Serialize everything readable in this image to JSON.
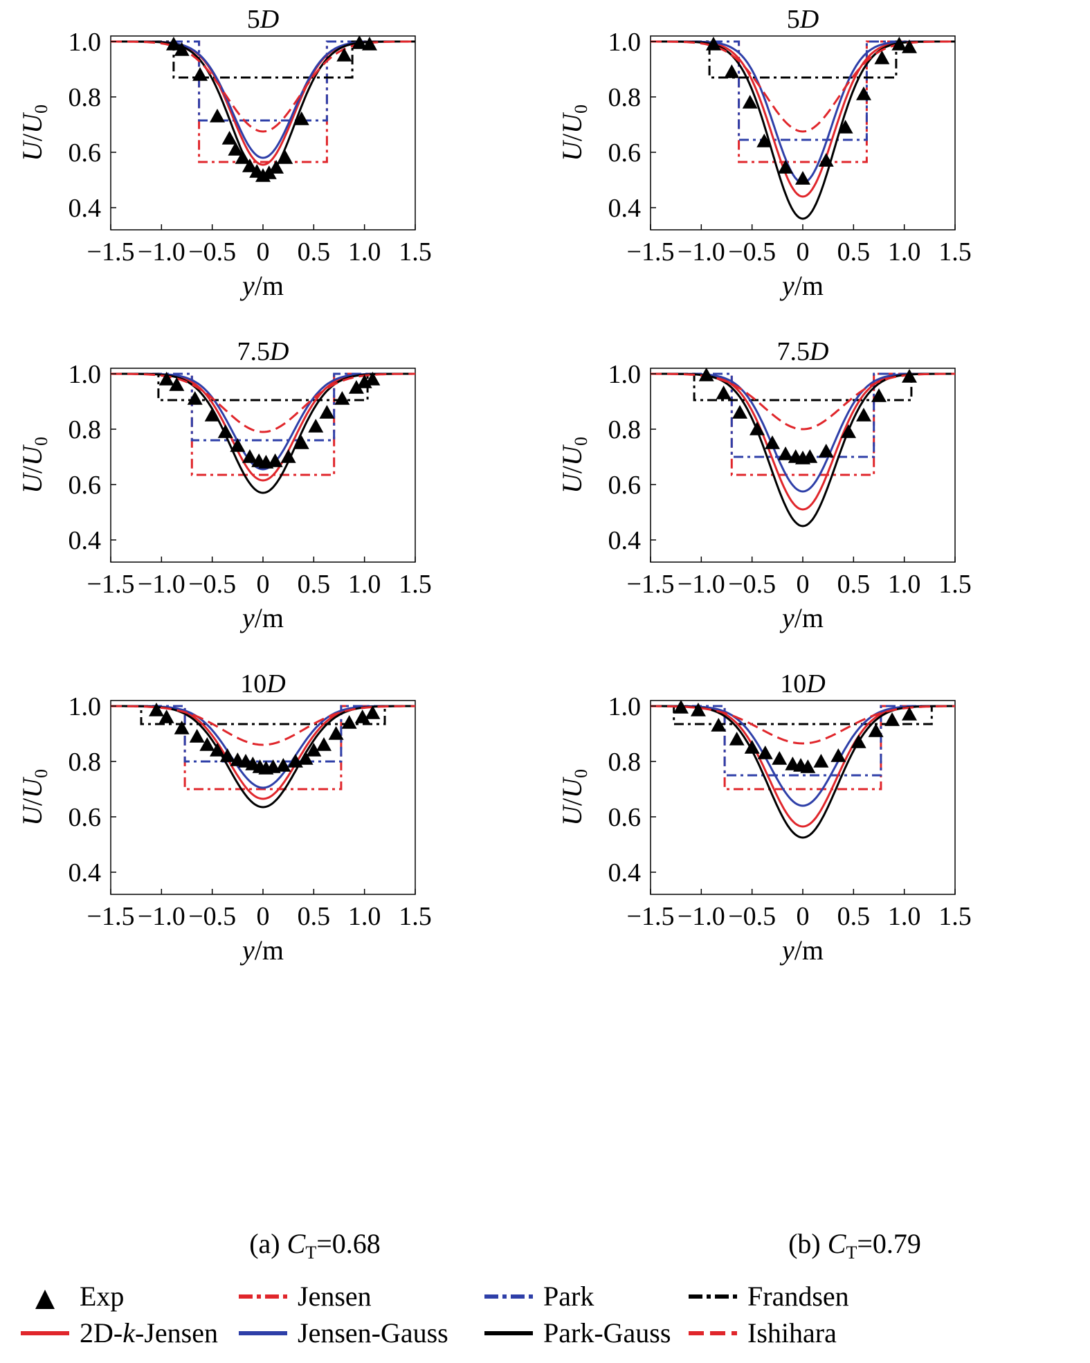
{
  "figure": {
    "col_captions": [
      {
        "prefix": "(a) ",
        "var": "C",
        "sub": "T",
        "value": "=0.68"
      },
      {
        "prefix": "(b) ",
        "var": "C",
        "sub": "T",
        "value": "=0.79"
      }
    ]
  },
  "legend": [
    {
      "key": "exp",
      "label": "Exp",
      "marker": "triangle"
    },
    {
      "key": "jensen",
      "label": "Jensen",
      "color": "#e0262b",
      "dash": "dashdot"
    },
    {
      "key": "park",
      "label": "Park",
      "color": "#2e3fa8",
      "dash": "dashdot"
    },
    {
      "key": "frandsen",
      "label": "Frandsen",
      "color": "#000000",
      "dash": "dashdot"
    },
    {
      "key": "k2d",
      "label": "2D-k-Jensen",
      "color": "#e0262b",
      "dash": "solid"
    },
    {
      "key": "jgauss",
      "label": "Jensen-Gauss",
      "color": "#2e3fa8",
      "dash": "solid"
    },
    {
      "key": "pgauss",
      "label": "Park-Gauss",
      "color": "#000000",
      "dash": "solid"
    },
    {
      "key": "ishihara",
      "label": "Ishihara",
      "color": "#e0262b",
      "dash": "dashed"
    }
  ],
  "chart_data": [
    {
      "type": "line",
      "title": "5D",
      "xlabel": "y/m",
      "ylabel": "U/U0",
      "xlim": [
        -1.5,
        1.5
      ],
      "ylim": [
        0.32,
        1.02
      ],
      "xticks": [
        "−1.5",
        "−1.0",
        "−0.5",
        "0",
        "0.5",
        "1.0",
        "1.5"
      ],
      "yticks": [
        "0.4",
        "0.6",
        "0.8",
        "1.0"
      ],
      "series": [
        {
          "name": "Jensen",
          "type": "tophat",
          "halfwidth": 0.63,
          "value": 0.565
        },
        {
          "name": "Park",
          "type": "tophat",
          "halfwidth": 0.63,
          "value": 0.715
        },
        {
          "name": "Frandsen",
          "type": "tophat",
          "halfwidth": 0.88,
          "value": 0.87
        },
        {
          "name": "2D-k-Jensen",
          "type": "gauss",
          "center": 0.555,
          "sigma": 0.3
        },
        {
          "name": "Jensen-Gauss",
          "type": "gauss",
          "center": 0.58,
          "sigma": 0.3
        },
        {
          "name": "Park-Gauss",
          "type": "gauss",
          "center": 0.505,
          "sigma": 0.31
        },
        {
          "name": "Ishihara",
          "type": "gauss",
          "center": 0.675,
          "sigma": 0.36
        },
        {
          "name": "Exp",
          "type": "points",
          "x": [
            -0.88,
            -0.8,
            -0.62,
            -0.45,
            -0.33,
            -0.27,
            -0.2,
            -0.13,
            -0.06,
            0.0,
            0.06,
            0.13,
            0.22,
            0.38,
            0.8,
            0.95,
            1.05
          ],
          "y": [
            0.99,
            0.97,
            0.88,
            0.73,
            0.65,
            0.61,
            0.58,
            0.55,
            0.53,
            0.515,
            0.525,
            0.545,
            0.58,
            0.72,
            0.95,
            0.995,
            0.99
          ]
        }
      ]
    },
    {
      "type": "line",
      "title": "5D",
      "xlabel": "y/m",
      "ylabel": "U/U0",
      "xlim": [
        -1.5,
        1.5
      ],
      "ylim": [
        0.32,
        1.02
      ],
      "xticks": [
        "−1.5",
        "−1.0",
        "−0.5",
        "0",
        "0.5",
        "1.0",
        "1.5"
      ],
      "yticks": [
        "0.4",
        "0.6",
        "0.8",
        "1.0"
      ],
      "series": [
        {
          "name": "Jensen",
          "type": "tophat",
          "halfwidth": 0.63,
          "value": 0.565
        },
        {
          "name": "Park",
          "type": "tophat",
          "halfwidth": 0.63,
          "value": 0.645
        },
        {
          "name": "Frandsen",
          "type": "tophat",
          "halfwidth": 0.92,
          "value": 0.87
        },
        {
          "name": "2D-k-Jensen",
          "type": "gauss",
          "center": 0.44,
          "sigma": 0.3
        },
        {
          "name": "Jensen-Gauss",
          "type": "gauss",
          "center": 0.49,
          "sigma": 0.28
        },
        {
          "name": "Park-Gauss",
          "type": "gauss",
          "center": 0.36,
          "sigma": 0.31
        },
        {
          "name": "Ishihara",
          "type": "gauss",
          "center": 0.675,
          "sigma": 0.36
        },
        {
          "name": "Exp",
          "type": "points",
          "x": [
            -0.88,
            -0.7,
            -0.52,
            -0.38,
            -0.17,
            0.0,
            0.23,
            0.42,
            0.6,
            0.78,
            0.95,
            1.05
          ],
          "y": [
            0.99,
            0.89,
            0.78,
            0.64,
            0.545,
            0.505,
            0.57,
            0.69,
            0.81,
            0.94,
            0.99,
            0.98
          ]
        }
      ]
    },
    {
      "type": "line",
      "title": "7.5D",
      "xlabel": "y/m",
      "ylabel": "U/U0",
      "xlim": [
        -1.5,
        1.5
      ],
      "ylim": [
        0.32,
        1.02
      ],
      "xticks": [
        "−1.5",
        "−1.0",
        "−0.5",
        "0",
        "0.5",
        "1.0",
        "1.5"
      ],
      "yticks": [
        "0.4",
        "0.6",
        "0.8",
        "1.0"
      ],
      "series": [
        {
          "name": "Jensen",
          "type": "tophat",
          "halfwidth": 0.7,
          "value": 0.635
        },
        {
          "name": "Park",
          "type": "tophat",
          "halfwidth": 0.7,
          "value": 0.76
        },
        {
          "name": "Frandsen",
          "type": "tophat",
          "halfwidth": 1.03,
          "value": 0.905
        },
        {
          "name": "2D-k-Jensen",
          "type": "gauss",
          "center": 0.615,
          "sigma": 0.31
        },
        {
          "name": "Jensen-Gauss",
          "type": "gauss",
          "center": 0.655,
          "sigma": 0.3
        },
        {
          "name": "Park-Gauss",
          "type": "gauss",
          "center": 0.57,
          "sigma": 0.32
        },
        {
          "name": "Ishihara",
          "type": "gauss",
          "center": 0.79,
          "sigma": 0.38
        },
        {
          "name": "Exp",
          "type": "points",
          "x": [
            -0.95,
            -0.85,
            -0.67,
            -0.5,
            -0.37,
            -0.25,
            -0.13,
            -0.04,
            0.03,
            0.12,
            0.25,
            0.38,
            0.52,
            0.63,
            0.78,
            0.92,
            1.0,
            1.08
          ],
          "y": [
            0.98,
            0.96,
            0.91,
            0.85,
            0.79,
            0.74,
            0.7,
            0.685,
            0.68,
            0.685,
            0.7,
            0.75,
            0.81,
            0.86,
            0.91,
            0.95,
            0.97,
            0.98
          ]
        }
      ]
    },
    {
      "type": "line",
      "title": "7.5D",
      "xlabel": "y/m",
      "ylabel": "U/U0",
      "xlim": [
        -1.5,
        1.5
      ],
      "ylim": [
        0.32,
        1.02
      ],
      "xticks": [
        "−1.5",
        "−1.0",
        "−0.5",
        "0",
        "0.5",
        "1.0",
        "1.5"
      ],
      "yticks": [
        "0.4",
        "0.6",
        "0.8",
        "1.0"
      ],
      "series": [
        {
          "name": "Jensen",
          "type": "tophat",
          "halfwidth": 0.7,
          "value": 0.635
        },
        {
          "name": "Park",
          "type": "tophat",
          "halfwidth": 0.7,
          "value": 0.7
        },
        {
          "name": "Frandsen",
          "type": "tophat",
          "halfwidth": 1.07,
          "value": 0.905
        },
        {
          "name": "2D-k-Jensen",
          "type": "gauss",
          "center": 0.51,
          "sigma": 0.31
        },
        {
          "name": "Jensen-Gauss",
          "type": "gauss",
          "center": 0.575,
          "sigma": 0.3
        },
        {
          "name": "Park-Gauss",
          "type": "gauss",
          "center": 0.45,
          "sigma": 0.32
        },
        {
          "name": "Ishihara",
          "type": "gauss",
          "center": 0.8,
          "sigma": 0.38
        },
        {
          "name": "Exp",
          "type": "points",
          "x": [
            -0.95,
            -0.78,
            -0.62,
            -0.45,
            -0.3,
            -0.17,
            -0.07,
            0.0,
            0.07,
            0.23,
            0.45,
            0.6,
            0.75,
            1.05
          ],
          "y": [
            0.995,
            0.93,
            0.86,
            0.8,
            0.75,
            0.71,
            0.7,
            0.695,
            0.7,
            0.72,
            0.79,
            0.85,
            0.92,
            0.99
          ]
        }
      ]
    },
    {
      "type": "line",
      "title": "10D",
      "xlabel": "y/m",
      "ylabel": "U/U0",
      "xlim": [
        -1.5,
        1.5
      ],
      "ylim": [
        0.32,
        1.02
      ],
      "xticks": [
        "−1.5",
        "−1.0",
        "−0.5",
        "0",
        "0.5",
        "1.0",
        "1.5"
      ],
      "yticks": [
        "0.4",
        "0.6",
        "0.8",
        "1.0"
      ],
      "series": [
        {
          "name": "Jensen",
          "type": "tophat",
          "halfwidth": 0.77,
          "value": 0.7
        },
        {
          "name": "Park",
          "type": "tophat",
          "halfwidth": 0.77,
          "value": 0.8
        },
        {
          "name": "Frandsen",
          "type": "tophat",
          "halfwidth": 1.2,
          "value": 0.935
        },
        {
          "name": "2D-k-Jensen",
          "type": "gauss",
          "center": 0.665,
          "sigma": 0.33
        },
        {
          "name": "Jensen-Gauss",
          "type": "gauss",
          "center": 0.705,
          "sigma": 0.32
        },
        {
          "name": "Park-Gauss",
          "type": "gauss",
          "center": 0.635,
          "sigma": 0.34
        },
        {
          "name": "Ishihara",
          "type": "gauss",
          "center": 0.86,
          "sigma": 0.4
        },
        {
          "name": "Exp",
          "type": "points",
          "x": [
            -1.05,
            -0.95,
            -0.8,
            -0.65,
            -0.55,
            -0.45,
            -0.35,
            -0.25,
            -0.17,
            -0.1,
            -0.03,
            0.03,
            0.1,
            0.2,
            0.32,
            0.42,
            0.5,
            0.6,
            0.72,
            0.85,
            0.98,
            1.08
          ],
          "y": [
            0.985,
            0.96,
            0.92,
            0.89,
            0.86,
            0.84,
            0.82,
            0.805,
            0.8,
            0.79,
            0.78,
            0.775,
            0.78,
            0.785,
            0.8,
            0.81,
            0.84,
            0.86,
            0.9,
            0.94,
            0.96,
            0.975
          ]
        }
      ]
    },
    {
      "type": "line",
      "title": "10D",
      "xlabel": "y/m",
      "ylabel": "U/U0",
      "xlim": [
        -1.5,
        1.5
      ],
      "ylim": [
        0.32,
        1.02
      ],
      "xticks": [
        "−1.5",
        "−1.0",
        "−0.5",
        "0",
        "0.5",
        "1.0",
        "1.5"
      ],
      "yticks": [
        "0.4",
        "0.6",
        "0.8",
        "1.0"
      ],
      "series": [
        {
          "name": "Jensen",
          "type": "tophat",
          "halfwidth": 0.77,
          "value": 0.7
        },
        {
          "name": "Park",
          "type": "tophat",
          "halfwidth": 0.77,
          "value": 0.75
        },
        {
          "name": "Frandsen",
          "type": "tophat",
          "halfwidth": 1.27,
          "value": 0.935
        },
        {
          "name": "2D-k-Jensen",
          "type": "gauss",
          "center": 0.565,
          "sigma": 0.33
        },
        {
          "name": "Jensen-Gauss",
          "type": "gauss",
          "center": 0.64,
          "sigma": 0.32
        },
        {
          "name": "Park-Gauss",
          "type": "gauss",
          "center": 0.525,
          "sigma": 0.34
        },
        {
          "name": "Ishihara",
          "type": "gauss",
          "center": 0.865,
          "sigma": 0.42
        },
        {
          "name": "Exp",
          "type": "points",
          "x": [
            -1.2,
            -1.03,
            -0.83,
            -0.65,
            -0.5,
            -0.37,
            -0.23,
            -0.1,
            -0.02,
            0.05,
            0.18,
            0.35,
            0.55,
            0.72,
            0.88,
            1.05
          ],
          "y": [
            0.995,
            0.985,
            0.93,
            0.88,
            0.85,
            0.83,
            0.81,
            0.79,
            0.785,
            0.78,
            0.8,
            0.82,
            0.87,
            0.91,
            0.95,
            0.97
          ]
        }
      ]
    }
  ]
}
